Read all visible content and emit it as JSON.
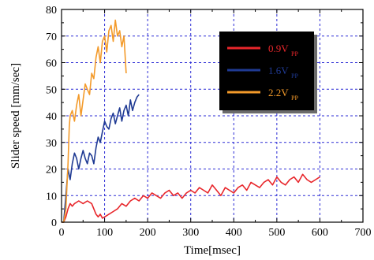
{
  "chart_data": {
    "type": "line",
    "xlabel": "Time[msec]",
    "ylabel": "Slider speed [mm/sec]",
    "xlim": [
      0,
      700
    ],
    "ylim": [
      0,
      80
    ],
    "xticks": [
      "0",
      "100",
      "200",
      "300",
      "400",
      "500",
      "600",
      "700"
    ],
    "yticks": [
      "0",
      "10",
      "20",
      "30",
      "40",
      "50",
      "60",
      "70",
      "80"
    ],
    "grid": true,
    "legend_position": "top-right",
    "series": [
      {
        "name": "0.9V",
        "subscript": "PP",
        "color": "#e8262b",
        "x": [
          0,
          5,
          10,
          15,
          20,
          25,
          30,
          40,
          50,
          60,
          70,
          75,
          80,
          85,
          90,
          95,
          100,
          110,
          120,
          130,
          140,
          150,
          160,
          170,
          180,
          190,
          200,
          210,
          220,
          230,
          240,
          250,
          260,
          270,
          280,
          290,
          300,
          310,
          320,
          330,
          340,
          350,
          360,
          370,
          380,
          390,
          400,
          410,
          420,
          430,
          440,
          450,
          460,
          470,
          480,
          490,
          500,
          510,
          520,
          530,
          540,
          550,
          560,
          570,
          580,
          590,
          600
        ],
        "y": [
          0,
          0,
          2,
          5,
          7,
          6,
          7,
          8,
          7,
          8,
          7,
          5,
          3,
          2,
          3,
          1.5,
          2,
          3,
          4,
          5,
          7,
          6,
          8,
          9,
          8,
          10,
          9,
          11,
          10,
          9,
          11,
          12,
          10,
          11,
          9,
          11,
          12,
          11,
          13,
          12,
          11,
          14,
          12,
          10,
          13,
          12,
          11,
          13,
          14,
          12,
          15,
          14,
          13,
          15,
          16,
          14,
          17,
          15,
          14,
          16,
          17,
          15,
          18,
          16,
          15,
          16,
          17
        ]
      },
      {
        "name": "1.6V",
        "subscript": "PP",
        "color": "#1f3a93",
        "x": [
          0,
          5,
          10,
          15,
          20,
          25,
          30,
          35,
          40,
          45,
          50,
          55,
          60,
          65,
          70,
          75,
          80,
          85,
          90,
          95,
          100,
          105,
          110,
          115,
          120,
          125,
          130,
          135,
          140,
          145,
          150,
          155,
          160,
          165,
          170,
          175,
          180
        ],
        "y": [
          0,
          0,
          10,
          20,
          16,
          22,
          26,
          24,
          20,
          24,
          27,
          24,
          22,
          26,
          25,
          22,
          28,
          32,
          30,
          34,
          38,
          36,
          35,
          39,
          41,
          37,
          40,
          43,
          38,
          42,
          44,
          40,
          46,
          42,
          45,
          47,
          48
        ]
      },
      {
        "name": "2.2V",
        "subscript": "PP",
        "color": "#f39a2a",
        "x": [
          0,
          5,
          10,
          15,
          18,
          20,
          25,
          30,
          35,
          40,
          45,
          50,
          55,
          60,
          65,
          70,
          75,
          80,
          85,
          90,
          95,
          100,
          105,
          110,
          115,
          120,
          125,
          130,
          135,
          140,
          145,
          150
        ],
        "y": [
          0,
          0,
          5,
          22,
          36,
          40,
          42,
          38,
          44,
          48,
          40,
          46,
          52,
          50,
          48,
          56,
          54,
          62,
          66,
          60,
          68,
          70,
          64,
          72,
          74,
          68,
          76,
          70,
          72,
          66,
          70,
          56
        ]
      }
    ]
  }
}
